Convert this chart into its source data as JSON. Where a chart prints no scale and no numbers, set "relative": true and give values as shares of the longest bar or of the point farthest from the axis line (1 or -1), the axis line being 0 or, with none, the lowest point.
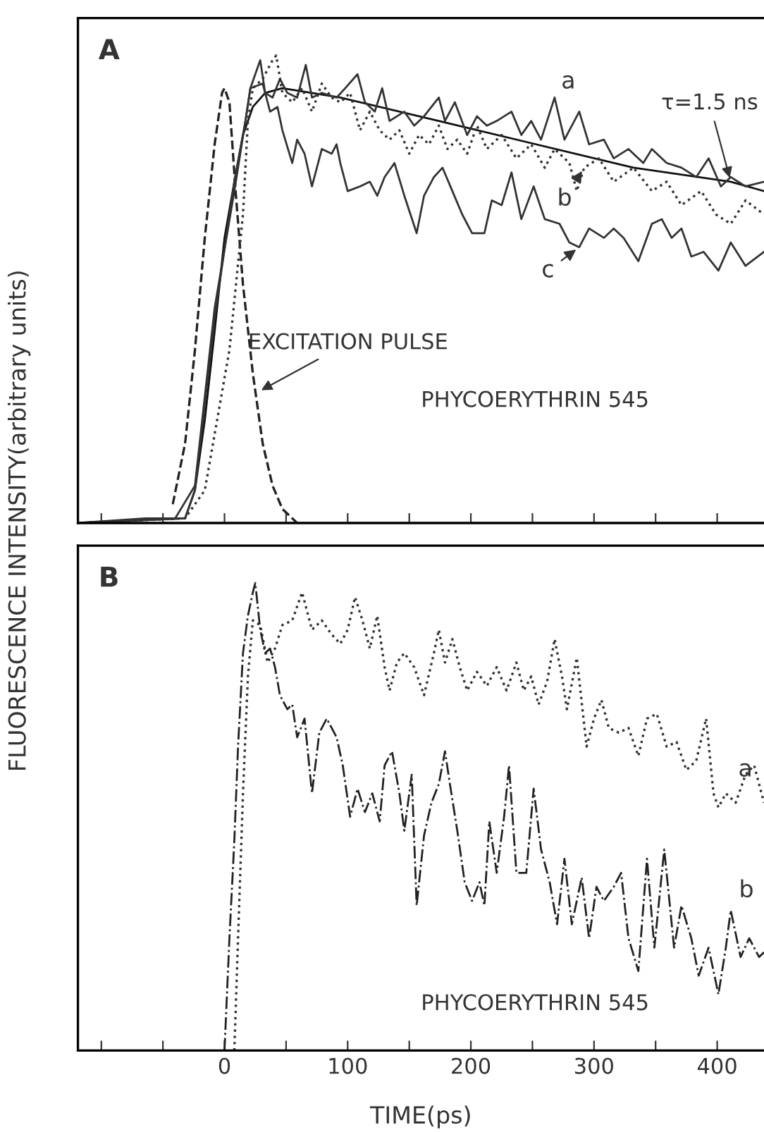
{
  "chart_data": [
    {
      "type": "line",
      "title": "A",
      "ylabel": "FLUORESCENCE INTENSITY(arbitrary units)",
      "relative": true,
      "xlim": [
        -119,
        438
      ],
      "xticks": [
        {
          "value": -100,
          "label": null
        },
        {
          "value": -50,
          "label": null
        },
        {
          "value": 0,
          "label": null
        },
        {
          "value": 50,
          "label": null
        },
        {
          "value": 100,
          "label": null
        },
        {
          "value": 150,
          "label": null
        },
        {
          "value": 200,
          "label": null
        },
        {
          "value": 250,
          "label": null
        },
        {
          "value": 300,
          "label": null
        },
        {
          "value": 350,
          "label": null
        },
        {
          "value": 400,
          "label": null
        }
      ],
      "tick_labels": false,
      "series": [
        {
          "color": "#222222",
          "line_style": "dashed",
          "x": [
            -42,
            -32,
            -24,
            -16,
            -8,
            -2,
            0,
            4,
            9,
            15,
            23,
            31,
            39,
            47,
            59
          ],
          "values": [
            0.04,
            0.17,
            0.37,
            0.61,
            0.81,
            0.92,
            0.93,
            0.9,
            0.71,
            0.51,
            0.32,
            0.17,
            0.08,
            0.03,
            0
          ]
        },
        {
          "color": "#111111",
          "line_style": "solid",
          "x": [
            -119,
            -32,
            -24,
            -16,
            -8,
            0,
            8,
            15,
            23,
            33,
            47,
            94,
            174,
            253,
            332,
            411,
            438
          ],
          "values": [
            0,
            0.01,
            0.07,
            0.22,
            0.41,
            0.61,
            0.73,
            0.83,
            0.89,
            0.92,
            0.93,
            0.91,
            0.86,
            0.81,
            0.76,
            0.73,
            0.71
          ]
        },
        {
          "color": "#333333",
          "line_style": "solid",
          "x": [
            -119,
            -64,
            -40,
            -24,
            -8,
            8,
            17,
            21,
            25,
            29,
            33,
            39,
            45,
            51,
            59,
            66,
            71,
            79,
            91,
            98,
            108,
            114,
            122,
            128,
            134,
            146,
            154,
            162,
            174,
            179,
            187,
            197,
            205,
            213,
            221,
            233,
            241,
            249,
            257,
            268,
            276,
            288,
            296,
            308,
            316,
            328,
            340,
            347,
            359,
            371,
            383,
            393,
            403,
            411,
            423,
            438
          ],
          "values": [
            0,
            0.01,
            0.01,
            0.08,
            0.46,
            0.71,
            0.86,
            0.93,
            0.96,
            0.99,
            0.92,
            0.91,
            0.95,
            0.92,
            0.91,
            0.98,
            0.91,
            0.92,
            0.91,
            0.93,
            0.96,
            0.9,
            0.88,
            0.93,
            0.86,
            0.88,
            0.85,
            0.87,
            0.91,
            0.86,
            0.9,
            0.83,
            0.87,
            0.85,
            0.86,
            0.88,
            0.83,
            0.86,
            0.82,
            0.91,
            0.82,
            0.88,
            0.81,
            0.82,
            0.78,
            0.8,
            0.77,
            0.8,
            0.77,
            0.76,
            0.74,
            0.78,
            0.72,
            0.74,
            0.72,
            0.73
          ]
        },
        {
          "color": "#333333",
          "line_style": "dotted",
          "x": [
            -119,
            -32,
            -16,
            4,
            15,
            19,
            23,
            31,
            39,
            42,
            47,
            55,
            63,
            71,
            79,
            87,
            94,
            102,
            110,
            118,
            126,
            134,
            142,
            150,
            158,
            166,
            174,
            181,
            189,
            197,
            205,
            213,
            225,
            237,
            249,
            260,
            268,
            280,
            286,
            292,
            304,
            316,
            332,
            347,
            359,
            371,
            387,
            399,
            411,
            423,
            438
          ],
          "values": [
            0,
            0.01,
            0.07,
            0.37,
            0.66,
            0.86,
            0.93,
            0.95,
            0.99,
            1.0,
            0.92,
            0.9,
            0.93,
            0.88,
            0.94,
            0.91,
            0.9,
            0.92,
            0.84,
            0.88,
            0.84,
            0.82,
            0.84,
            0.79,
            0.83,
            0.81,
            0.85,
            0.8,
            0.82,
            0.79,
            0.85,
            0.8,
            0.83,
            0.78,
            0.81,
            0.76,
            0.8,
            0.77,
            0.71,
            0.76,
            0.78,
            0.73,
            0.76,
            0.71,
            0.73,
            0.68,
            0.71,
            0.66,
            0.64,
            0.69,
            0.66
          ]
        },
        {
          "color": "#333333",
          "line_style": "solid",
          "x": [
            -119,
            -32,
            -24,
            -8,
            8,
            17,
            21,
            31,
            37,
            43,
            47,
            55,
            59,
            65,
            71,
            79,
            87,
            91,
            94,
            100,
            110,
            118,
            124,
            130,
            138,
            146,
            156,
            162,
            170,
            177,
            185,
            193,
            201,
            211,
            217,
            225,
            233,
            241,
            251,
            260,
            272,
            280,
            288,
            296,
            308,
            316,
            324,
            336,
            347,
            355,
            363,
            371,
            379,
            389,
            401,
            411,
            423,
            438
          ],
          "values": [
            0,
            0.01,
            0.07,
            0.44,
            0.73,
            0.86,
            0.93,
            0.94,
            0.88,
            0.89,
            0.84,
            0.77,
            0.82,
            0.79,
            0.72,
            0.8,
            0.79,
            0.81,
            0.77,
            0.71,
            0.72,
            0.73,
            0.7,
            0.74,
            0.77,
            0.7,
            0.62,
            0.7,
            0.74,
            0.76,
            0.71,
            0.66,
            0.62,
            0.62,
            0.69,
            0.68,
            0.75,
            0.65,
            0.72,
            0.65,
            0.64,
            0.6,
            0.59,
            0.63,
            0.61,
            0.63,
            0.61,
            0.56,
            0.64,
            0.65,
            0.61,
            0.63,
            0.57,
            0.58,
            0.54,
            0.6,
            0.55,
            0.58
          ]
        }
      ],
      "annotations": [
        {
          "text": "a",
          "x": 268,
          "y": 0.91
        },
        {
          "text": "b",
          "x": 292,
          "y": 0.76
        },
        {
          "text": "c",
          "x": 288,
          "y": 0.59
        },
        {
          "text": "τ=1.5 ns",
          "x": 411,
          "y": 0.73
        },
        {
          "text": "EXCITATION PULSE",
          "x": 27,
          "y": 0.28
        },
        "PHYCOERYTHRIN 545"
      ]
    },
    {
      "type": "line",
      "title": "B",
      "xlabel": "TIME(ps)",
      "relative": true,
      "xlim": [
        -119,
        438
      ],
      "xticks": [
        {
          "value": -100,
          "label": null
        },
        {
          "value": -50,
          "label": null
        },
        0,
        {
          "value": 50,
          "label": null
        },
        100,
        {
          "value": 150,
          "label": null
        },
        200,
        {
          "value": 250,
          "label": null
        },
        300,
        {
          "value": 350,
          "label": null
        },
        400
      ],
      "tick_labels": "x",
      "series": [
        {
          "color": "#333333",
          "line_style": "dotted",
          "x": [
            8,
            11,
            15,
            19,
            23,
            29,
            35,
            41,
            47,
            55,
            63,
            71,
            79,
            87,
            94,
            100,
            106,
            112,
            118,
            124,
            130,
            134,
            140,
            146,
            154,
            162,
            170,
            174,
            179,
            185,
            191,
            197,
            205,
            213,
            221,
            229,
            237,
            243,
            249,
            255,
            262,
            268,
            274,
            278,
            286,
            294,
            300,
            306,
            312,
            320,
            328,
            336,
            343,
            351,
            359,
            367,
            375,
            383,
            391,
            397,
            401,
            407,
            415,
            423,
            430,
            438
          ],
          "values": [
            0,
            0.24,
            0.55,
            0.8,
            0.92,
            0.91,
            0.83,
            0.86,
            0.91,
            0.92,
            0.98,
            0.9,
            0.92,
            0.89,
            0.87,
            0.9,
            0.97,
            0.92,
            0.86,
            0.93,
            0.82,
            0.77,
            0.83,
            0.85,
            0.82,
            0.76,
            0.85,
            0.9,
            0.83,
            0.88,
            0.82,
            0.77,
            0.81,
            0.78,
            0.82,
            0.77,
            0.83,
            0.77,
            0.8,
            0.74,
            0.79,
            0.88,
            0.8,
            0.73,
            0.84,
            0.65,
            0.71,
            0.75,
            0.69,
            0.68,
            0.69,
            0.63,
            0.71,
            0.72,
            0.65,
            0.66,
            0.6,
            0.62,
            0.71,
            0.55,
            0.52,
            0.55,
            0.53,
            0.59,
            0.61,
            0.53
          ]
        },
        {
          "color": "#222222",
          "line_style": "dashdot",
          "x": [
            0,
            4,
            8,
            11,
            15,
            19,
            23,
            25,
            29,
            33,
            37,
            41,
            45,
            51,
            55,
            59,
            65,
            71,
            77,
            83,
            91,
            96,
            102,
            108,
            114,
            120,
            126,
            130,
            136,
            142,
            146,
            152,
            156,
            162,
            168,
            174,
            179,
            183,
            189,
            195,
            201,
            207,
            211,
            215,
            221,
            227,
            231,
            237,
            245,
            251,
            257,
            264,
            270,
            276,
            282,
            290,
            296,
            302,
            308,
            316,
            322,
            328,
            336,
            343,
            349,
            357,
            365,
            371,
            379,
            385,
            393,
            401,
            407,
            411,
            419,
            426,
            434,
            438
          ],
          "values": [
            0,
            0.24,
            0.45,
            0.65,
            0.85,
            0.93,
            0.98,
            1.0,
            0.9,
            0.85,
            0.86,
            0.82,
            0.76,
            0.73,
            0.74,
            0.67,
            0.71,
            0.55,
            0.68,
            0.71,
            0.67,
            0.61,
            0.5,
            0.56,
            0.51,
            0.55,
            0.49,
            0.61,
            0.64,
            0.55,
            0.47,
            0.59,
            0.31,
            0.46,
            0.53,
            0.57,
            0.64,
            0.57,
            0.47,
            0.36,
            0.32,
            0.36,
            0.31,
            0.49,
            0.38,
            0.5,
            0.61,
            0.38,
            0.38,
            0.56,
            0.43,
            0.36,
            0.27,
            0.41,
            0.27,
            0.37,
            0.24,
            0.35,
            0.32,
            0.35,
            0.38,
            0.24,
            0.17,
            0.41,
            0.22,
            0.43,
            0.22,
            0.31,
            0.24,
            0.16,
            0.22,
            0.12,
            0.22,
            0.3,
            0.2,
            0.24,
            0.2,
            0.21
          ]
        }
      ],
      "annotations": [
        {
          "text": "a",
          "x": 407,
          "y": 0.55
        },
        {
          "text": "b",
          "x": 411,
          "y": 0.3
        },
        "PHYCOERYTHRIN 545"
      ]
    }
  ]
}
